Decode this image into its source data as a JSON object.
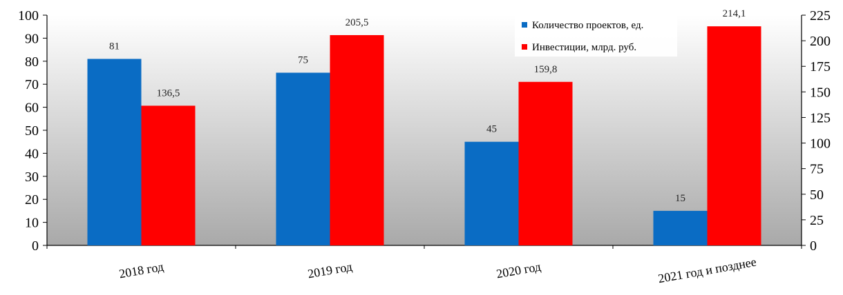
{
  "chart_data": {
    "type": "bar",
    "title": "",
    "xlabel": "",
    "ylabel": "",
    "categories": [
      "2018 год",
      "2019 год",
      "2020 год",
      "2021 год и позднее"
    ],
    "series": [
      {
        "name": "Количество проектов, ед.",
        "axis": "left",
        "color": "#0a6cc4",
        "values": [
          81,
          75,
          45,
          15
        ],
        "labels": [
          "81",
          "75",
          "45",
          "15"
        ]
      },
      {
        "name": "Инвестиции, млрд. руб.",
        "axis": "right",
        "color": "#ff0000",
        "values": [
          136.5,
          205.5,
          159.8,
          214.1
        ],
        "labels": [
          "136,5",
          "205,5",
          "159,8",
          "214,1"
        ]
      }
    ],
    "y_left": {
      "min": 0,
      "max": 100,
      "ticks": [
        "0",
        "10",
        "20",
        "30",
        "40",
        "50",
        "60",
        "70",
        "80",
        "90",
        "100"
      ]
    },
    "y_right": {
      "min": 0,
      "max": 225,
      "ticks": [
        "0",
        "25",
        "50",
        "75",
        "100",
        "125",
        "150",
        "175",
        "200",
        "225"
      ]
    },
    "legend_position": "top-right",
    "grid": false,
    "background": {
      "top": "#ffffff",
      "bottom": "#a9a9a9"
    }
  }
}
